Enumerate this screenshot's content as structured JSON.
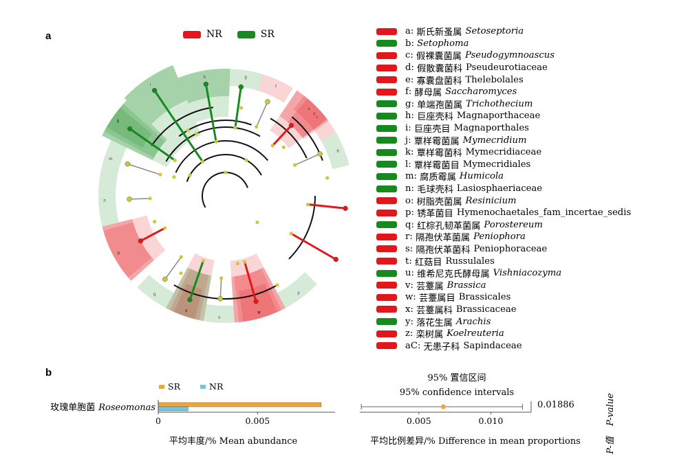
{
  "panels": {
    "a": "a",
    "b": "b"
  },
  "colors": {
    "NR": "#e3171b",
    "SR": "#178a1f",
    "SR_bar": "#f0a63a",
    "NR_bar": "#6cc8e6"
  },
  "legend": [
    {
      "label": "NR",
      "color": "#e3171b"
    },
    {
      "label": "SR",
      "color": "#178a1f"
    }
  ],
  "taxa": [
    {
      "letter": "a",
      "cn": "斯氏新蚤属",
      "latin": "Setoseptoria",
      "latin_italic": true,
      "group": "NR"
    },
    {
      "letter": "b",
      "cn": "",
      "latin": "Setophoma",
      "latin_italic": true,
      "group": "SR"
    },
    {
      "letter": "c",
      "cn": "假裸囊菌属",
      "latin": "Pseudogymnoascus",
      "latin_italic": true,
      "group": "NR"
    },
    {
      "letter": "d",
      "cn": "假散囊菌科",
      "latin": "Pseudeurotiaceae",
      "latin_italic": false,
      "group": "NR"
    },
    {
      "letter": "e",
      "cn": "寡囊盘菌科",
      "latin": "Thelebolales",
      "latin_italic": false,
      "group": "NR"
    },
    {
      "letter": "f",
      "cn": "酵母属",
      "latin": "Saccharomyces",
      "latin_italic": true,
      "group": "NR"
    },
    {
      "letter": "g",
      "cn": "单端孢菌属",
      "latin": "Trichothecium",
      "latin_italic": true,
      "group": "SR"
    },
    {
      "letter": "h",
      "cn": "巨座壳科",
      "latin": "Magnaporthaceae",
      "latin_italic": false,
      "group": "SR"
    },
    {
      "letter": "i",
      "cn": "巨座壳目",
      "latin": "Magnaporthales",
      "latin_italic": false,
      "group": "SR"
    },
    {
      "letter": "j",
      "cn": "覃样霉菌属",
      "latin": "Mymecridium",
      "latin_italic": true,
      "group": "SR"
    },
    {
      "letter": "k",
      "cn": "覃样霉菌科",
      "latin": "Mymecridiaceae",
      "latin_italic": false,
      "group": "SR"
    },
    {
      "letter": "l",
      "cn": "覃样霉菌目",
      "latin": "Mymecridiales",
      "latin_italic": false,
      "group": "SR"
    },
    {
      "letter": "m",
      "cn": "腐质霉属",
      "latin": "Humicola",
      "latin_italic": true,
      "group": "SR"
    },
    {
      "letter": "n",
      "cn": "毛球壳科",
      "latin": "Lasiosphaeriaceae",
      "latin_italic": false,
      "group": "SR"
    },
    {
      "letter": "o",
      "cn": "树脂壳菌属",
      "latin": "Resinicium",
      "latin_italic": true,
      "group": "NR"
    },
    {
      "letter": "p",
      "cn": "锈革菌目",
      "latin": "Hymenochaetales_fam_incertae_sedis",
      "latin_italic": false,
      "group": "NR"
    },
    {
      "letter": "q",
      "cn": "红棕孔韧革菌属",
      "latin": "Porostereum",
      "latin_italic": true,
      "group": "SR"
    },
    {
      "letter": "r",
      "cn": "隔孢伏革菌属",
      "latin": "Peniophora",
      "latin_italic": true,
      "group": "NR"
    },
    {
      "letter": "s",
      "cn": "隔孢伏革菌科",
      "latin": "Peniophoraceae",
      "latin_italic": false,
      "group": "NR"
    },
    {
      "letter": "t",
      "cn": "红菇目",
      "latin": "Russulales",
      "latin_italic": false,
      "group": "NR"
    },
    {
      "letter": "u",
      "cn": "维希尼克氏酵母属",
      "latin": "Vishniacozyma",
      "latin_italic": true,
      "group": "SR"
    },
    {
      "letter": "v",
      "cn": "芸薹属",
      "latin": "Brassica",
      "latin_italic": true,
      "group": "NR"
    },
    {
      "letter": "w",
      "cn": "芸薹属目",
      "latin": "Brassicales",
      "latin_italic": false,
      "group": "NR"
    },
    {
      "letter": "x",
      "cn": "芸薹属科",
      "latin": "Brassicaceae",
      "latin_italic": false,
      "group": "NR"
    },
    {
      "letter": "y",
      "cn": "落花生属",
      "latin": "Arachis",
      "latin_italic": true,
      "group": "SR"
    },
    {
      "letter": "z",
      "cn": "栾树属",
      "latin": "Koelreuteria",
      "latin_italic": true,
      "group": "NR"
    },
    {
      "letter": "aC",
      "cn": "无患子科",
      "latin": "Sapindaceae",
      "latin_italic": false,
      "group": "NR"
    }
  ],
  "chart_data": [
    {
      "type": "cladogram",
      "legend": [
        "NR",
        "SR"
      ],
      "sectors": [
        {
          "label": "i",
          "group": "SR"
        },
        {
          "label": "h",
          "group": "SR"
        },
        {
          "label": "g",
          "group": "SR"
        },
        {
          "label": "f",
          "group": "NR"
        },
        {
          "label": "e",
          "group": "NR"
        },
        {
          "label": "d",
          "group": "NR"
        },
        {
          "label": "c",
          "group": "NR"
        },
        {
          "label": "b",
          "group": "SR"
        },
        {
          "label": "y",
          "group": "SR"
        },
        {
          "label": "x",
          "group": "NR"
        },
        {
          "label": "w",
          "group": "NR"
        },
        {
          "label": "v",
          "group": "NR"
        },
        {
          "label": "u",
          "group": "SR"
        },
        {
          "label": "t",
          "group": "NR"
        },
        {
          "label": "s",
          "group": "NR"
        },
        {
          "label": "r",
          "group": "NR"
        },
        {
          "label": "q",
          "group": "SR"
        },
        {
          "label": "p",
          "group": "NR"
        },
        {
          "label": "o",
          "group": "NR"
        },
        {
          "label": "n",
          "group": "SR"
        },
        {
          "label": "m",
          "group": "SR"
        },
        {
          "label": "l",
          "group": "SR"
        },
        {
          "label": "k",
          "group": "SR"
        },
        {
          "label": "j",
          "group": "SR"
        }
      ]
    },
    {
      "type": "bar",
      "legend": [
        "SR",
        "NR"
      ],
      "categories": [
        "玫瑰单胞菌 Roseomonas"
      ],
      "category_cn": "玫瑰单胞菌",
      "category_latin": "Roseomonas",
      "series": [
        {
          "name": "SR",
          "values": [
            0.0082
          ],
          "color": "#f0a63a"
        },
        {
          "name": "NR",
          "values": [
            0.0015
          ],
          "color": "#6cc8e6"
        }
      ],
      "xlim": [
        0,
        0.0089
      ],
      "xticks": [
        "0",
        "0.005"
      ],
      "xlabel": "平均丰度/% Mean abundance"
    },
    {
      "type": "scatter",
      "title_cn": "95% 置信区间",
      "title_en": "95% confidence intervals",
      "points": [
        {
          "mean": 0.0067,
          "ci_low": 0.001,
          "ci_high": 0.0122,
          "color": "#f0a63a"
        }
      ],
      "xlim": [
        0.0009,
        0.0128
      ],
      "xticks": [
        "0.005",
        "0.010"
      ],
      "xlabel": "平均比例差异/% Difference  in mean proportions",
      "p_value": "0.01886",
      "p_label_en": "P-value",
      "p_label_cn": "P-值"
    }
  ]
}
